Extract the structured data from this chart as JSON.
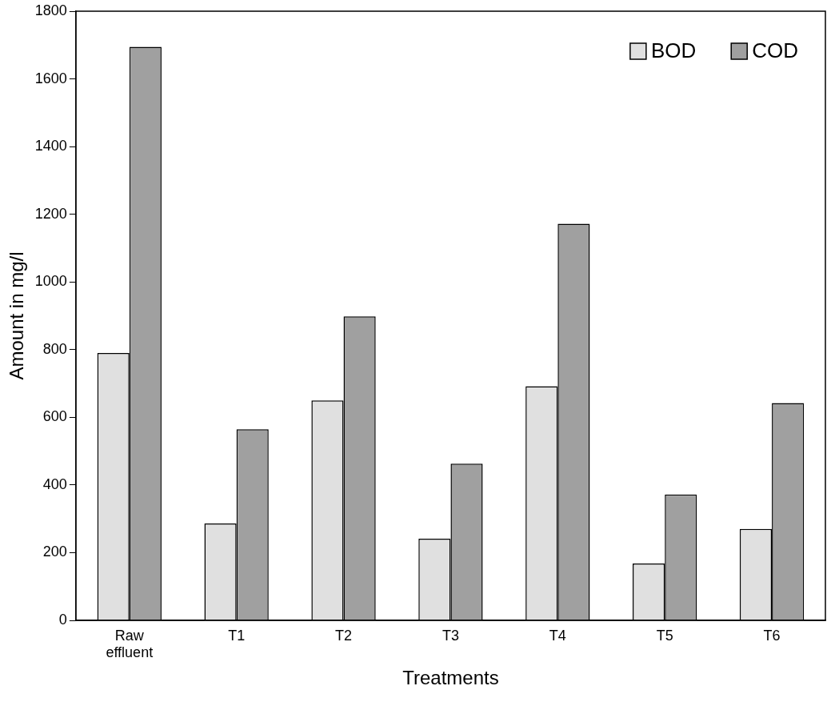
{
  "chart_data": {
    "type": "bar",
    "xlabel": "Treatments",
    "ylabel": "Amount in mg/l",
    "categories": [
      "Raw effluent",
      "T1",
      "T2",
      "T3",
      "T4",
      "T5",
      "T6"
    ],
    "series": [
      {
        "name": "BOD",
        "color": "#e0e0e0",
        "values": [
          790,
          286,
          650,
          241,
          692,
          168,
          270
        ]
      },
      {
        "name": "COD",
        "color": "#a0a0a0",
        "values": [
          1695,
          565,
          898,
          463,
          1172,
          372,
          642
        ]
      }
    ],
    "ylim": [
      0,
      1800
    ],
    "yticks": [
      0,
      200,
      400,
      600,
      800,
      1000,
      1200,
      1400,
      1600,
      1800
    ],
    "grid": false,
    "legend": "top right"
  }
}
